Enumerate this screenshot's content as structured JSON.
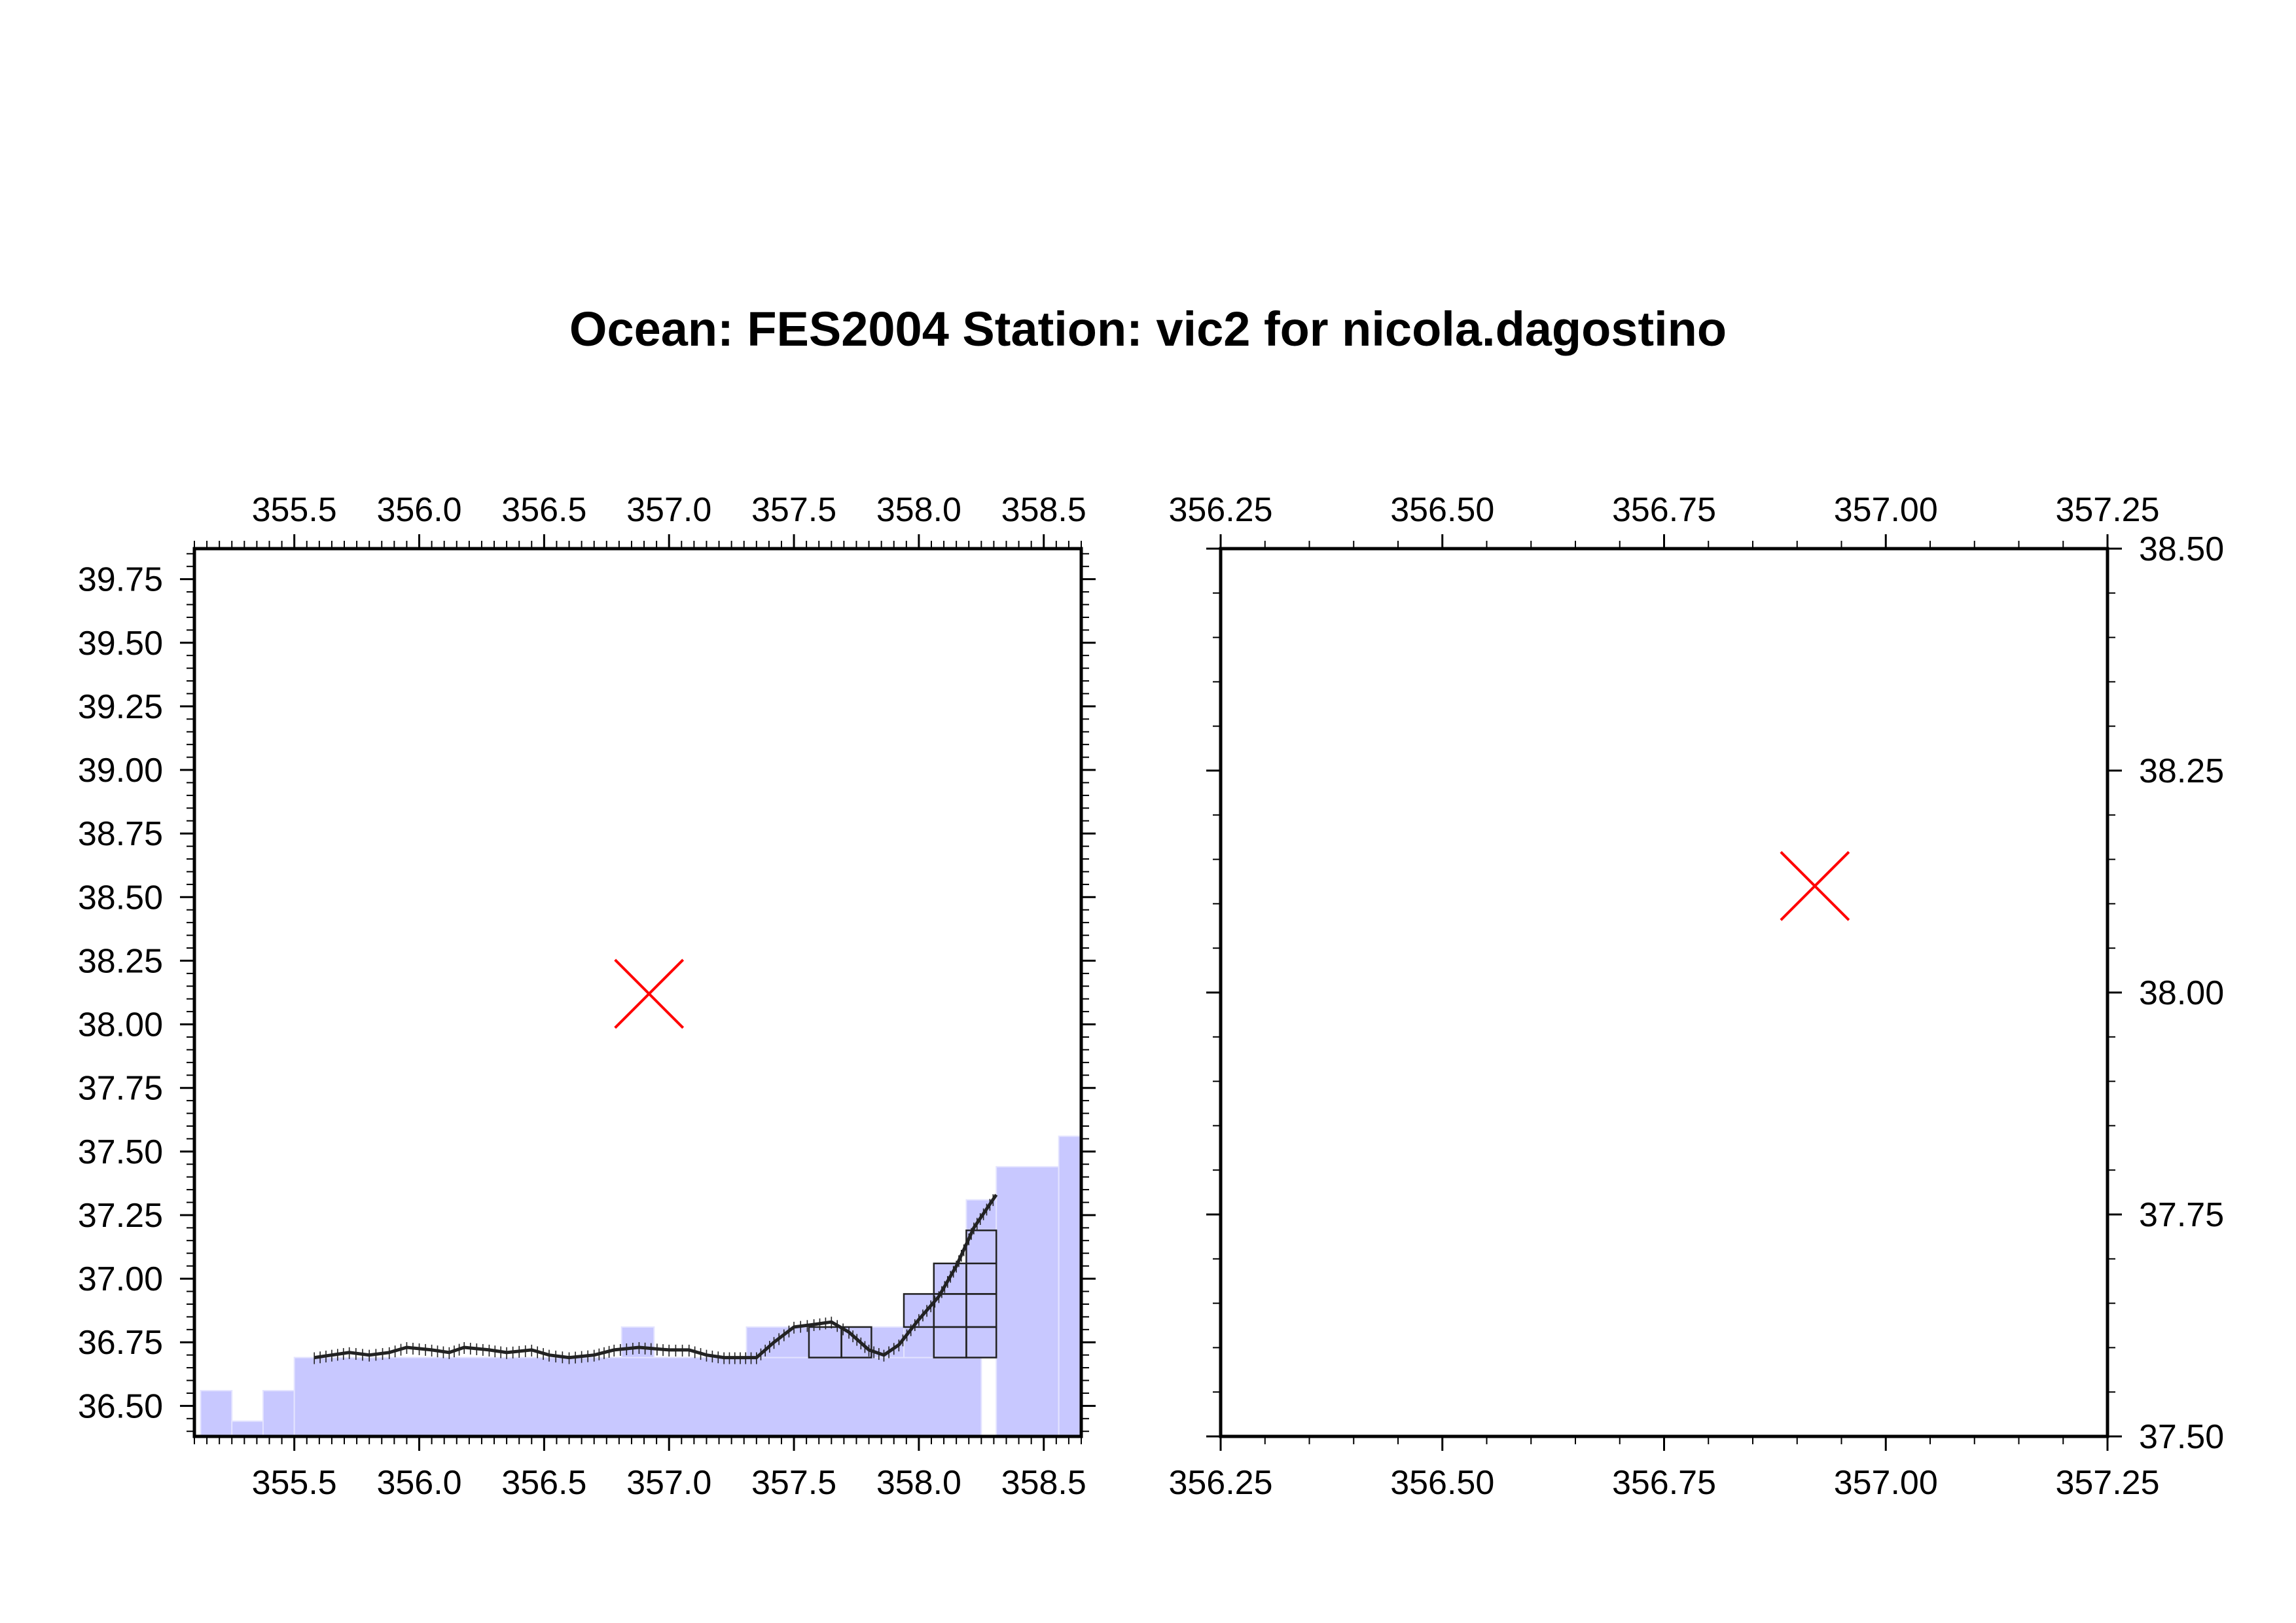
{
  "title": "Ocean: FES2004  Station: vic2  for nicola.dagostino",
  "colors": {
    "land": "#c8c8ff",
    "land_grid": "#e4e4ff",
    "mesh": "#222222",
    "station": "#ff0000",
    "frame": "#000000"
  },
  "panels": [
    {
      "id": "overview",
      "lon_range": [
        355.1,
        358.65
      ],
      "lat_range": [
        36.38,
        39.87
      ],
      "lon_ticks": [
        355.5,
        356.0,
        356.5,
        357.0,
        357.5,
        358.0,
        358.5
      ],
      "lon_tick_labels": [
        "355.5",
        "356.0",
        "356.5",
        "357.0",
        "357.5",
        "358.0",
        "358.5"
      ],
      "lat_ticks": [
        36.5,
        36.75,
        37.0,
        37.25,
        37.5,
        37.75,
        38.0,
        38.25,
        38.5,
        38.75,
        39.0,
        39.25,
        39.5,
        39.75
      ],
      "lat_tick_labels": [
        "36.50",
        "36.75",
        "37.00",
        "37.25",
        "37.50",
        "37.75",
        "38.00",
        "38.25",
        "38.50",
        "38.75",
        "39.00",
        "39.25",
        "39.50",
        "39.75"
      ],
      "lat_labels_side": "left",
      "minor_lon_step": 0.05,
      "minor_lat_step": 0.05,
      "station": {
        "lon": 356.92,
        "lat": 38.12
      },
      "land_cells": [
        [
          355.125,
          355.25,
          36.38,
          36.56
        ],
        [
          355.25,
          355.375,
          36.38,
          36.44
        ],
        [
          355.375,
          355.5,
          36.38,
          36.56
        ],
        [
          355.5,
          358.25,
          36.38,
          36.69
        ],
        [
          356.81,
          356.94,
          36.69,
          36.81
        ],
        [
          357.31,
          357.69,
          36.69,
          36.81
        ],
        [
          357.69,
          357.94,
          36.69,
          36.81
        ],
        [
          357.94,
          358.06,
          36.69,
          36.94
        ],
        [
          358.06,
          358.19,
          36.69,
          37.06
        ],
        [
          358.19,
          358.31,
          36.69,
          37.31
        ],
        [
          358.31,
          358.56,
          36.38,
          37.44
        ],
        [
          358.56,
          358.65,
          36.38,
          37.56
        ]
      ],
      "coast": [
        [
          355.58,
          36.69
        ],
        [
          355.65,
          36.7
        ],
        [
          355.72,
          36.71
        ],
        [
          355.8,
          36.7
        ],
        [
          355.88,
          36.71
        ],
        [
          355.95,
          36.73
        ],
        [
          356.05,
          36.72
        ],
        [
          356.12,
          36.71
        ],
        [
          356.18,
          36.73
        ],
        [
          356.28,
          36.72
        ],
        [
          356.35,
          36.71
        ],
        [
          356.45,
          36.72
        ],
        [
          356.52,
          36.7
        ],
        [
          356.6,
          36.69
        ],
        [
          356.7,
          36.7
        ],
        [
          356.78,
          36.72
        ],
        [
          356.88,
          36.73
        ],
        [
          357.0,
          36.72
        ],
        [
          357.08,
          36.72
        ],
        [
          357.15,
          36.7
        ],
        [
          357.22,
          36.69
        ],
        [
          357.35,
          36.69
        ],
        [
          357.42,
          36.75
        ],
        [
          357.5,
          36.81
        ],
        [
          357.58,
          36.82
        ],
        [
          357.65,
          36.83
        ],
        [
          357.72,
          36.79
        ],
        [
          357.8,
          36.72
        ],
        [
          357.86,
          36.7
        ],
        [
          357.92,
          36.74
        ],
        [
          358.0,
          36.84
        ],
        [
          358.08,
          36.93
        ],
        [
          358.15,
          37.05
        ],
        [
          358.22,
          37.2
        ],
        [
          358.31,
          37.33
        ]
      ],
      "mesh_cells": [
        [
          357.56,
          357.69,
          36.69,
          36.81
        ],
        [
          357.69,
          357.81,
          36.69,
          36.81
        ],
        [
          357.94,
          358.06,
          36.81,
          36.94
        ],
        [
          358.06,
          358.19,
          36.69,
          36.81
        ],
        [
          358.19,
          358.31,
          36.69,
          36.81
        ],
        [
          358.19,
          358.31,
          36.81,
          36.94
        ],
        [
          358.19,
          358.31,
          36.94,
          37.06
        ],
        [
          358.19,
          358.31,
          37.06,
          37.19
        ],
        [
          358.06,
          358.19,
          36.81,
          36.94
        ],
        [
          358.06,
          358.19,
          36.94,
          37.06
        ]
      ]
    },
    {
      "id": "zoom",
      "lon_range": [
        356.25,
        357.25
      ],
      "lat_range": [
        37.5,
        38.5
      ],
      "lon_ticks": [
        356.25,
        356.5,
        356.75,
        357.0,
        357.25
      ],
      "lon_tick_labels": [
        "356.25",
        "356.50",
        "356.75",
        "357.00",
        "357.25"
      ],
      "lat_ticks": [
        37.5,
        37.75,
        38.0,
        38.25,
        38.5
      ],
      "lat_tick_labels": [
        "37.50",
        "37.75",
        "38.00",
        "38.25",
        "38.50"
      ],
      "lat_labels_side": "right",
      "minor_lon_step": 0.05,
      "minor_lat_step": 0.05,
      "station": {
        "lon": 356.92,
        "lat": 38.12
      }
    }
  ]
}
